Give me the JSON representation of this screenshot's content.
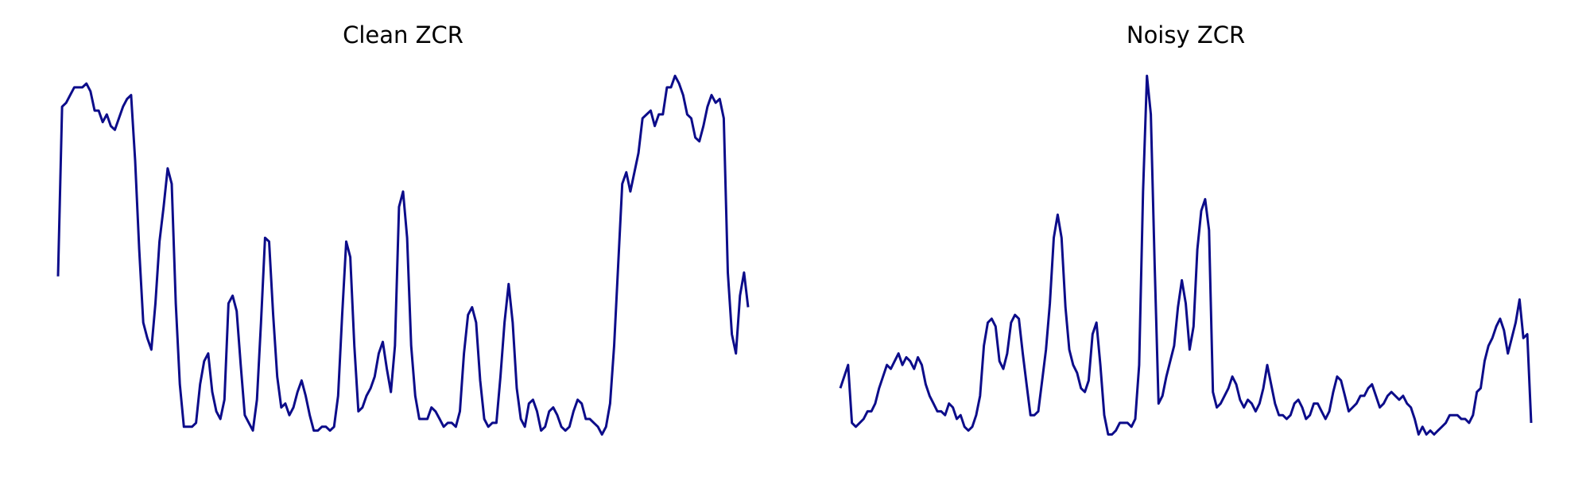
{
  "chart_data": [
    {
      "type": "line",
      "title": "Clean ZCR",
      "color": "#0c0c8a",
      "ylim": [
        0,
        1
      ],
      "values": [
        0.44,
        0.88,
        0.89,
        0.91,
        0.93,
        0.93,
        0.93,
        0.94,
        0.92,
        0.87,
        0.87,
        0.84,
        0.86,
        0.83,
        0.82,
        0.85,
        0.88,
        0.9,
        0.91,
        0.74,
        0.51,
        0.32,
        0.28,
        0.25,
        0.37,
        0.53,
        0.62,
        0.72,
        0.68,
        0.37,
        0.16,
        0.05,
        0.05,
        0.05,
        0.06,
        0.16,
        0.22,
        0.24,
        0.14,
        0.09,
        0.07,
        0.12,
        0.37,
        0.39,
        0.35,
        0.21,
        0.08,
        0.06,
        0.04,
        0.12,
        0.32,
        0.54,
        0.53,
        0.34,
        0.18,
        0.1,
        0.11,
        0.08,
        0.1,
        0.14,
        0.17,
        0.13,
        0.08,
        0.04,
        0.04,
        0.05,
        0.05,
        0.04,
        0.05,
        0.13,
        0.34,
        0.53,
        0.49,
        0.26,
        0.09,
        0.1,
        0.13,
        0.15,
        0.18,
        0.24,
        0.27,
        0.2,
        0.14,
        0.26,
        0.62,
        0.66,
        0.54,
        0.26,
        0.13,
        0.07,
        0.07,
        0.07,
        0.1,
        0.09,
        0.07,
        0.05,
        0.06,
        0.06,
        0.05,
        0.09,
        0.24,
        0.34,
        0.36,
        0.32,
        0.17,
        0.07,
        0.05,
        0.06,
        0.06,
        0.18,
        0.32,
        0.42,
        0.32,
        0.15,
        0.07,
        0.05,
        0.11,
        0.12,
        0.09,
        0.04,
        0.05,
        0.09,
        0.1,
        0.08,
        0.05,
        0.04,
        0.05,
        0.09,
        0.12,
        0.11,
        0.07,
        0.07,
        0.06,
        0.05,
        0.03,
        0.05,
        0.11,
        0.26,
        0.47,
        0.68,
        0.71,
        0.66,
        0.71,
        0.76,
        0.85,
        0.86,
        0.87,
        0.83,
        0.86,
        0.86,
        0.93,
        0.93,
        0.96,
        0.94,
        0.91,
        0.86,
        0.85,
        0.8,
        0.79,
        0.83,
        0.88,
        0.91,
        0.89,
        0.9,
        0.85,
        0.45,
        0.29,
        0.24,
        0.39,
        0.45,
        0.36
      ]
    },
    {
      "type": "line",
      "title": "Noisy ZCR",
      "color": "#0c0c8a",
      "ylim": [
        0,
        1
      ],
      "values": [
        0.15,
        0.18,
        0.21,
        0.06,
        0.05,
        0.06,
        0.07,
        0.09,
        0.09,
        0.11,
        0.15,
        0.18,
        0.21,
        0.2,
        0.22,
        0.24,
        0.21,
        0.23,
        0.22,
        0.2,
        0.23,
        0.21,
        0.16,
        0.13,
        0.11,
        0.09,
        0.09,
        0.08,
        0.11,
        0.1,
        0.07,
        0.08,
        0.05,
        0.04,
        0.05,
        0.08,
        0.13,
        0.26,
        0.32,
        0.33,
        0.31,
        0.22,
        0.2,
        0.24,
        0.32,
        0.34,
        0.33,
        0.24,
        0.16,
        0.08,
        0.08,
        0.09,
        0.17,
        0.25,
        0.37,
        0.54,
        0.6,
        0.54,
        0.36,
        0.25,
        0.21,
        0.19,
        0.15,
        0.14,
        0.17,
        0.29,
        0.32,
        0.21,
        0.08,
        0.03,
        0.03,
        0.04,
        0.06,
        0.06,
        0.06,
        0.05,
        0.07,
        0.21,
        0.66,
        0.96,
        0.86,
        0.47,
        0.11,
        0.13,
        0.18,
        0.22,
        0.26,
        0.36,
        0.43,
        0.37,
        0.25,
        0.31,
        0.51,
        0.61,
        0.64,
        0.56,
        0.14,
        0.1,
        0.11,
        0.13,
        0.15,
        0.18,
        0.16,
        0.12,
        0.1,
        0.12,
        0.11,
        0.09,
        0.11,
        0.15,
        0.21,
        0.16,
        0.11,
        0.08,
        0.08,
        0.07,
        0.08,
        0.11,
        0.12,
        0.1,
        0.07,
        0.08,
        0.11,
        0.11,
        0.09,
        0.07,
        0.09,
        0.14,
        0.18,
        0.17,
        0.13,
        0.09,
        0.1,
        0.11,
        0.13,
        0.13,
        0.15,
        0.16,
        0.13,
        0.1,
        0.11,
        0.13,
        0.14,
        0.13,
        0.12,
        0.13,
        0.11,
        0.1,
        0.07,
        0.03,
        0.05,
        0.03,
        0.04,
        0.03,
        0.04,
        0.05,
        0.06,
        0.08,
        0.08,
        0.08,
        0.07,
        0.07,
        0.06,
        0.08,
        0.14,
        0.15,
        0.22,
        0.26,
        0.28,
        0.31,
        0.33,
        0.3,
        0.24,
        0.28,
        0.32,
        0.38,
        0.28,
        0.29,
        0.06
      ]
    }
  ]
}
